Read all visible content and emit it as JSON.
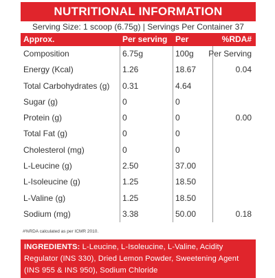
{
  "title": "NUTRITIONAL INFORMATION",
  "serving_line": "Serving Size: 1 scoop (6.75g)  |  Servings Per Container 37",
  "headers": [
    "Approx.",
    "Per serving",
    "Per",
    "%RDA#"
  ],
  "rows": [
    {
      "name": "Composition",
      "serving": "6.75g",
      "per": "100g",
      "rda": "Per Serving"
    },
    {
      "name": "Energy (Kcal)",
      "serving": "1.26",
      "per": "18.67",
      "rda": "0.04"
    },
    {
      "name": " Total Carbohydrates (g)",
      "serving": "0.31",
      "per": "4.64",
      "rda": ""
    },
    {
      "name": "Sugar (g)",
      "serving": "0",
      "per": "0",
      "rda": ""
    },
    {
      "name": "Protein (g)",
      "serving": "0",
      "per": "0",
      "rda": "0.00"
    },
    {
      "name": "Total Fat (g)",
      "serving": "0",
      "per": "0",
      "rda": ""
    },
    {
      "name": "Cholesterol (mg)",
      "serving": "0",
      "per": "0",
      "rda": ""
    },
    {
      "name": "L-Leucine (g)",
      "serving": "2.50",
      "per": "37.00",
      "rda": ""
    },
    {
      "name": "L-Isoleucine (g)",
      "serving": "1.25",
      "per": "18.50",
      "rda": ""
    },
    {
      "name": "L-Valine (g)",
      "serving": "1.25",
      "per": "18.50",
      "rda": ""
    },
    {
      "name": "Sodium (mg)",
      "serving": "3.38",
      "per": "50.00",
      "rda": "0.18"
    }
  ],
  "footnote": "#%RDA calculated as per ICMR 2010.",
  "ingredients_label": "INGREDIENTS:",
  "ingredients_text": " L-Leucine, L-Isoleucine, L-Valine, Acidity Regulator (INS 330), Dried Lemon Powder, Sweetening Agent (INS 955 & INS 950), Sodium Chloride",
  "colors": {
    "accent": "#e0252c"
  }
}
